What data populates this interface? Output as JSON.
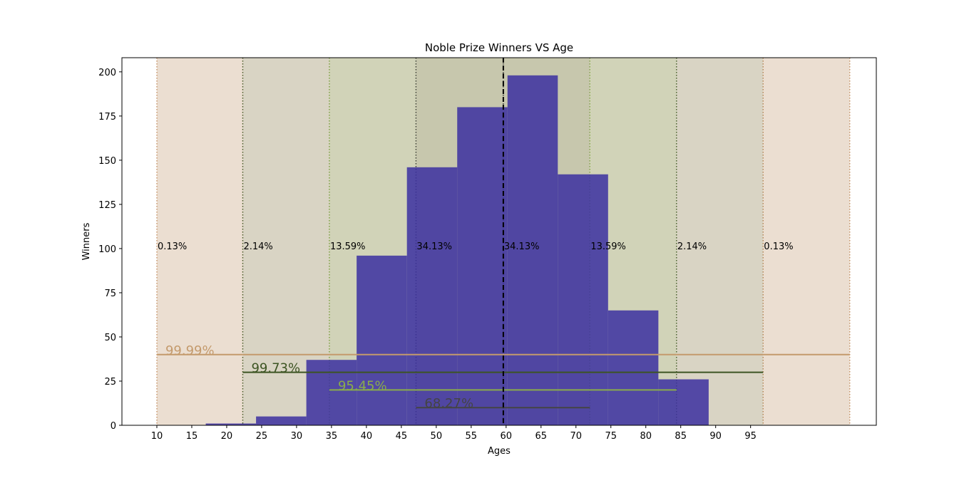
{
  "chart_data": {
    "type": "bar",
    "title": "Noble Prize Winners VS Age",
    "xlabel": "Ages",
    "ylabel": "Winners",
    "xlim": [
      5,
      113
    ],
    "ylim": [
      0,
      208
    ],
    "x_ticks": [
      10,
      15,
      20,
      25,
      30,
      35,
      40,
      45,
      50,
      55,
      60,
      65,
      70,
      75,
      80,
      85,
      90,
      95
    ],
    "y_ticks": [
      0,
      25,
      50,
      75,
      100,
      125,
      150,
      175,
      200
    ],
    "bar_color": "#3b2fa0",
    "histogram": [
      {
        "x0": 17.0,
        "x1": 24.2,
        "value": 1
      },
      {
        "x0": 24.2,
        "x1": 31.4,
        "value": 5
      },
      {
        "x0": 31.4,
        "x1": 38.6,
        "value": 37
      },
      {
        "x0": 38.6,
        "x1": 45.8,
        "value": 96
      },
      {
        "x0": 45.8,
        "x1": 53.0,
        "value": 146
      },
      {
        "x0": 53.0,
        "x1": 60.2,
        "value": 180
      },
      {
        "x0": 60.2,
        "x1": 67.4,
        "value": 198
      },
      {
        "x0": 67.4,
        "x1": 74.6,
        "value": 142
      },
      {
        "x0": 74.6,
        "x1": 81.8,
        "value": 65
      },
      {
        "x0": 81.8,
        "x1": 89.0,
        "value": 26
      }
    ],
    "mean": 59.6,
    "mean_line_color": "#000000",
    "sigma_bands": [
      {
        "x0": 10.0,
        "x1": 22.3,
        "label": "0.13%",
        "color": "#d8bea4",
        "edge_color": "#c08a5a"
      },
      {
        "x0": 22.3,
        "x1": 34.7,
        "label": "2.14%",
        "color": "#b3a98a",
        "edge_color": "#3d5523"
      },
      {
        "x0": 34.7,
        "x1": 47.1,
        "label": "13.59%",
        "color": "#a3a772",
        "edge_color": "#8aac4a"
      },
      {
        "x0": 47.1,
        "x1": 59.6,
        "label": "34.13%",
        "color": "#8f8f5c",
        "edge_color": "#333333"
      },
      {
        "x0": 59.6,
        "x1": 72.0,
        "label": "34.13%",
        "color": "#8f8f5c",
        "edge_color": "#333333"
      },
      {
        "x0": 72.0,
        "x1": 84.4,
        "label": "13.59%",
        "color": "#a3a772",
        "edge_color": "#8aac4a"
      },
      {
        "x0": 84.4,
        "x1": 96.8,
        "label": "2.14%",
        "color": "#b3a98a",
        "edge_color": "#3d5523"
      },
      {
        "x0": 96.8,
        "x1": 109.2,
        "label": "0.13%",
        "color": "#d8bea4",
        "edge_color": "#c08a5a"
      }
    ],
    "coverage_lines": [
      {
        "x0": 10.0,
        "x1": 109.2,
        "y": 40,
        "label": "99.99%",
        "color": "#c49a6c"
      },
      {
        "x0": 22.3,
        "x1": 96.8,
        "y": 30,
        "label": "99.73%",
        "color": "#3d5523"
      },
      {
        "x0": 34.7,
        "x1": 84.4,
        "y": 20,
        "label": "95.45%",
        "color": "#8aac4a"
      },
      {
        "x0": 47.1,
        "x1": 72.0,
        "y": 10,
        "label": "68.27%",
        "color": "#444444"
      }
    ]
  }
}
